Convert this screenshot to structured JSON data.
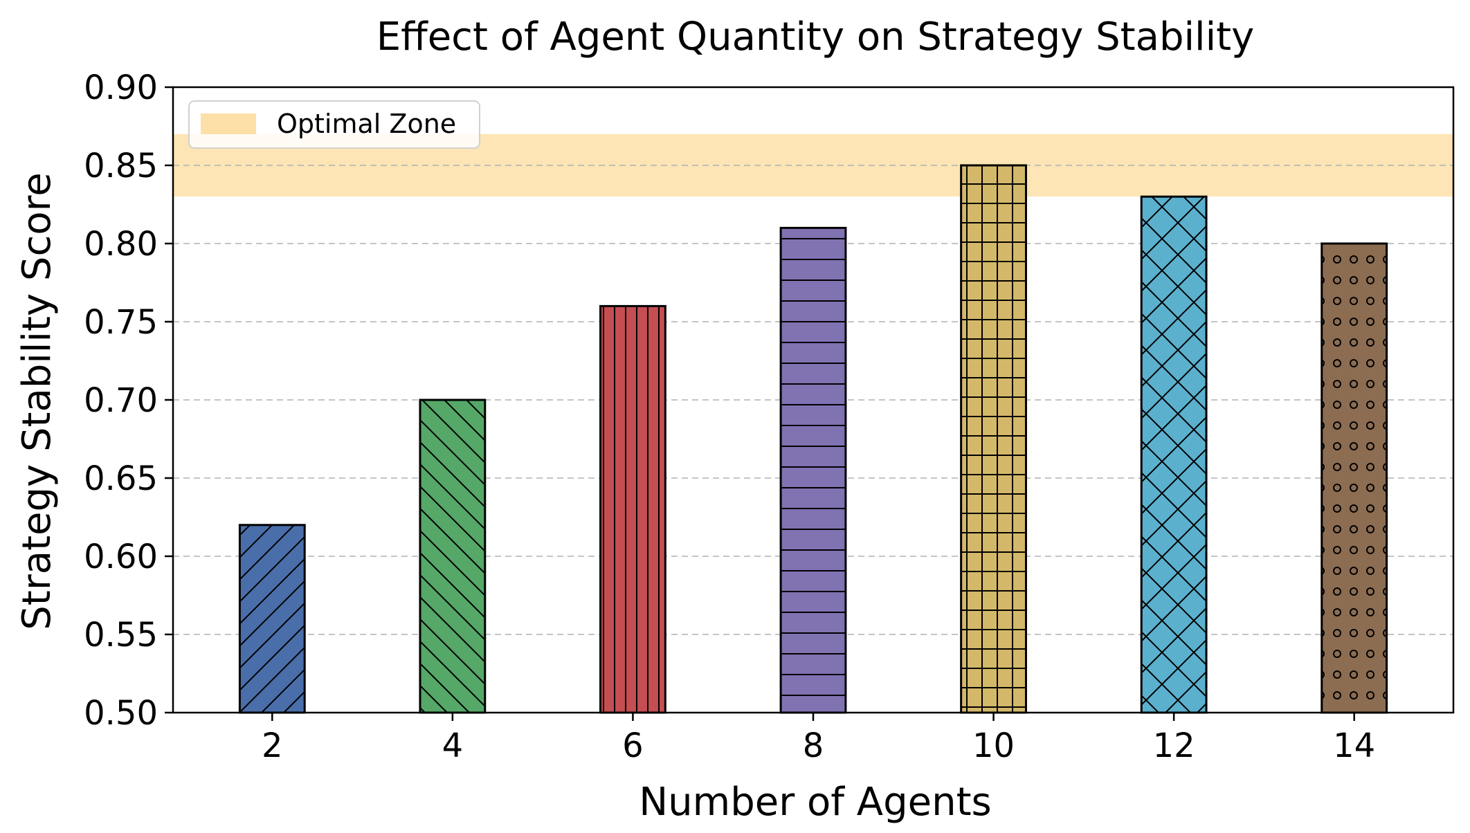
{
  "chart_data": {
    "type": "bar",
    "title": "Effect of Agent Quantity on Strategy Stability",
    "xlabel": "Number of Agents",
    "ylabel": "Strategy Stability Score",
    "categories": [
      "2",
      "4",
      "6",
      "8",
      "10",
      "12",
      "14"
    ],
    "values": [
      0.62,
      0.7,
      0.76,
      0.81,
      0.85,
      0.83,
      0.8
    ],
    "ylim": [
      0.5,
      0.9
    ],
    "yticks": [
      "0.50",
      "0.55",
      "0.60",
      "0.65",
      "0.70",
      "0.75",
      "0.80",
      "0.85",
      "0.90"
    ],
    "bar_colors": [
      "#4a6eaa",
      "#55a868",
      "#c44e52",
      "#8172b2",
      "#d4b86a",
      "#5bb0ce",
      "#8c6d52"
    ],
    "bar_hatches": [
      "diagonal-forward",
      "diagonal-back",
      "vertical",
      "horizontal",
      "grid",
      "crosshatch",
      "dots"
    ],
    "grid": "horizontal-dashed",
    "highlight_band": {
      "label": "Optimal Zone",
      "range": [
        0.83,
        0.87
      ],
      "color": "#fde0a8"
    },
    "legend": {
      "placement": "top-left",
      "entries": [
        "Optimal Zone"
      ]
    }
  }
}
